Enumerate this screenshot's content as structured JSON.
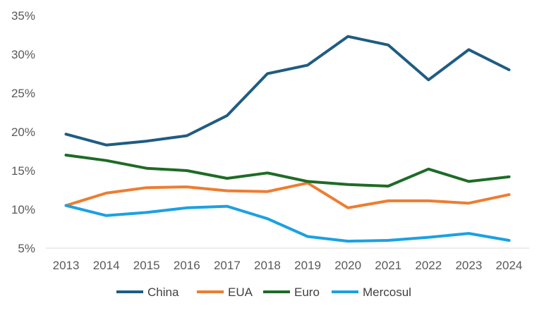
{
  "chart_data": {
    "type": "line",
    "categories": [
      "2013",
      "2014",
      "2015",
      "2016",
      "2017",
      "2018",
      "2019",
      "2020",
      "2021",
      "2022",
      "2023",
      "2024"
    ],
    "series": [
      {
        "name": "China",
        "color": "#1F5C82",
        "values": [
          19.7,
          18.3,
          18.8,
          19.5,
          22.1,
          27.5,
          28.6,
          32.3,
          31.2,
          26.7,
          30.6,
          28.0
        ]
      },
      {
        "name": "EUA",
        "color": "#ED7D31",
        "values": [
          10.5,
          12.1,
          12.8,
          12.9,
          12.4,
          12.3,
          13.4,
          10.2,
          11.1,
          11.1,
          10.8,
          11.9
        ]
      },
      {
        "name": "Euro",
        "color": "#1E6B26",
        "values": [
          17.0,
          16.3,
          15.3,
          15.0,
          14.0,
          14.7,
          13.6,
          13.2,
          13.0,
          15.2,
          13.6,
          14.2
        ]
      },
      {
        "name": "Mercosul",
        "color": "#1BA1E2",
        "values": [
          10.5,
          9.2,
          9.6,
          10.2,
          10.4,
          8.8,
          6.5,
          5.9,
          6.0,
          6.4,
          6.9,
          6.0
        ]
      }
    ],
    "y_ticks": [
      "5%",
      "10%",
      "15%",
      "20%",
      "25%",
      "30%",
      "35%"
    ],
    "ylim": [
      5,
      35
    ],
    "grid": false,
    "legend_position": "bottom",
    "title": "",
    "xlabel": "",
    "ylabel": ""
  }
}
